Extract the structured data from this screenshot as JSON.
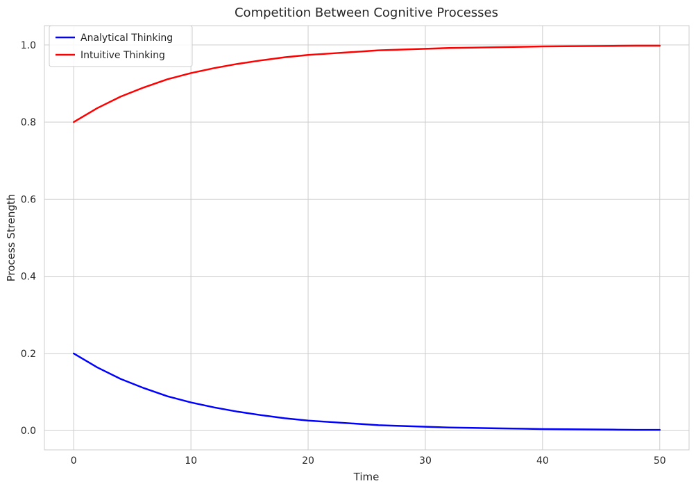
{
  "chart_data": {
    "type": "line",
    "title": "Competition Between Cognitive Processes",
    "xlabel": "Time",
    "ylabel": "Process Strength",
    "xlim": [
      -2.5,
      52.5
    ],
    "ylim": [
      -0.05,
      1.05
    ],
    "xticks": [
      0,
      10,
      20,
      30,
      40,
      50
    ],
    "xtick_labels": [
      "0",
      "10",
      "20",
      "30",
      "40",
      "50"
    ],
    "yticks": [
      0.0,
      0.2,
      0.4,
      0.6,
      0.8,
      1.0
    ],
    "ytick_labels": [
      "0.0",
      "0.2",
      "0.4",
      "0.6",
      "0.8",
      "1.0"
    ],
    "grid": true,
    "legend_position": "top-left",
    "x": [
      0,
      2,
      4,
      6,
      8,
      10,
      12,
      14,
      16,
      18,
      20,
      22,
      24,
      26,
      28,
      30,
      32,
      34,
      36,
      38,
      40,
      42,
      44,
      46,
      48,
      50
    ],
    "series": [
      {
        "name": "Analytical Thinking",
        "color": "#0000ff",
        "values": [
          0.2,
          0.164,
          0.134,
          0.11,
          0.089,
          0.073,
          0.06,
          0.049,
          0.04,
          0.032,
          0.026,
          0.022,
          0.018,
          0.014,
          0.012,
          0.01,
          0.008,
          0.007,
          0.006,
          0.005,
          0.004,
          0.0035,
          0.003,
          0.0025,
          0.002,
          0.002
        ]
      },
      {
        "name": "Intuitive Thinking",
        "color": "#ff0000",
        "values": [
          0.8,
          0.836,
          0.866,
          0.89,
          0.911,
          0.927,
          0.94,
          0.951,
          0.96,
          0.968,
          0.974,
          0.978,
          0.982,
          0.986,
          0.988,
          0.99,
          0.992,
          0.993,
          0.994,
          0.995,
          0.996,
          0.9965,
          0.997,
          0.9975,
          0.998,
          0.998
        ]
      }
    ]
  }
}
